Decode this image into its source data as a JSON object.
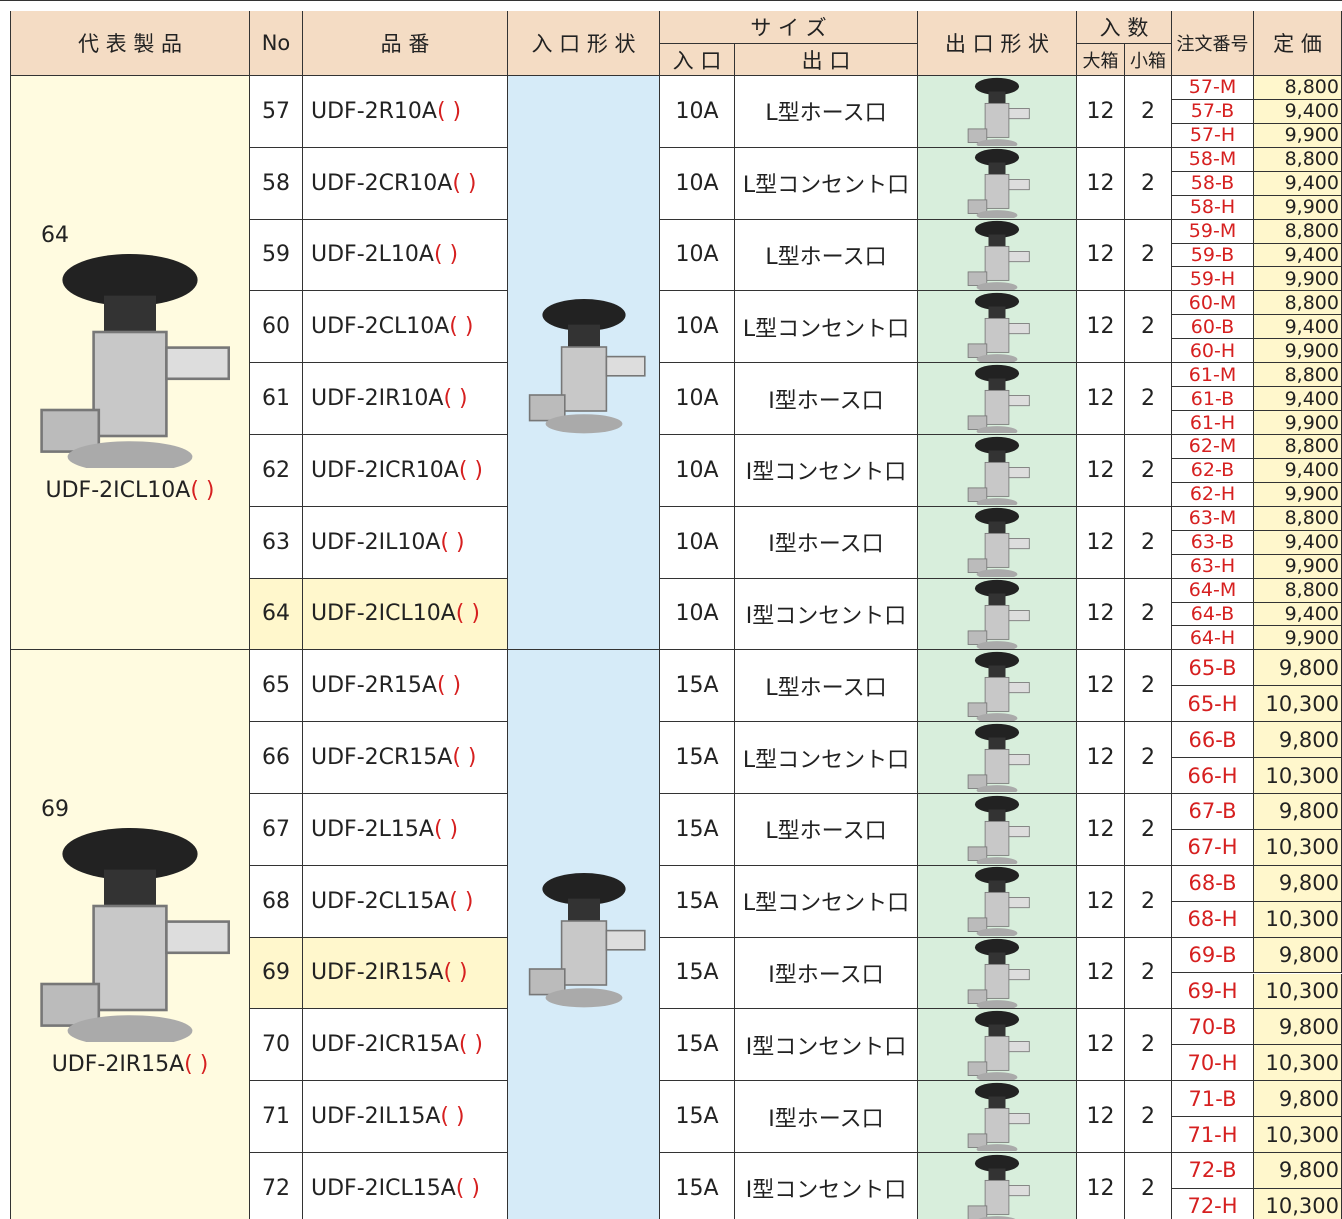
{
  "header": {
    "rep": "代 表 製 品",
    "no": "No",
    "model": "品 番",
    "inlet_shape": "入 口 形 状",
    "size": "サ イ ズ",
    "size_in": "入 口",
    "size_out": "出 口",
    "outlet_shape": "出 口 形 状",
    "qty": "入 数",
    "qty_big": "大箱",
    "qty_small": "小箱",
    "order": "注文番号",
    "price": "定 価"
  },
  "groups": [
    {
      "rep_no": 64,
      "rep_model": "UDF-2ICL10A",
      "rep_paren": "( )",
      "rows": [
        {
          "no": 57,
          "model": "UDF-2R10A",
          "paren": "( )",
          "inlet": "10A",
          "outlet": "L型ホース口",
          "big": 12,
          "small": 2,
          "orders": [
            {
              "code": "57-M",
              "price": "8,800"
            },
            {
              "code": "57-B",
              "price": "9,400"
            },
            {
              "code": "57-H",
              "price": "9,900"
            }
          ]
        },
        {
          "no": 58,
          "model": "UDF-2CR10A",
          "paren": "( )",
          "inlet": "10A",
          "outlet": "L型コンセント口",
          "big": 12,
          "small": 2,
          "orders": [
            {
              "code": "58-M",
              "price": "8,800"
            },
            {
              "code": "58-B",
              "price": "9,400"
            },
            {
              "code": "58-H",
              "price": "9,900"
            }
          ]
        },
        {
          "no": 59,
          "model": "UDF-2L10A",
          "paren": "( )",
          "inlet": "10A",
          "outlet": "L型ホース口",
          "big": 12,
          "small": 2,
          "orders": [
            {
              "code": "59-M",
              "price": "8,800"
            },
            {
              "code": "59-B",
              "price": "9,400"
            },
            {
              "code": "59-H",
              "price": "9,900"
            }
          ]
        },
        {
          "no": 60,
          "model": "UDF-2CL10A",
          "paren": "( )",
          "inlet": "10A",
          "outlet": "L型コンセント口",
          "big": 12,
          "small": 2,
          "orders": [
            {
              "code": "60-M",
              "price": "8,800"
            },
            {
              "code": "60-B",
              "price": "9,400"
            },
            {
              "code": "60-H",
              "price": "9,900"
            }
          ]
        },
        {
          "no": 61,
          "model": "UDF-2IR10A",
          "paren": "( )",
          "inlet": "10A",
          "outlet": "I型ホース口",
          "big": 12,
          "small": 2,
          "orders": [
            {
              "code": "61-M",
              "price": "8,800"
            },
            {
              "code": "61-B",
              "price": "9,400"
            },
            {
              "code": "61-H",
              "price": "9,900"
            }
          ]
        },
        {
          "no": 62,
          "model": "UDF-2ICR10A",
          "paren": "( )",
          "inlet": "10A",
          "outlet": "I型コンセント口",
          "big": 12,
          "small": 2,
          "orders": [
            {
              "code": "62-M",
              "price": "8,800"
            },
            {
              "code": "62-B",
              "price": "9,400"
            },
            {
              "code": "62-H",
              "price": "9,900"
            }
          ]
        },
        {
          "no": 63,
          "model": "UDF-2IL10A",
          "paren": "( )",
          "inlet": "10A",
          "outlet": "I型ホース口",
          "big": 12,
          "small": 2,
          "orders": [
            {
              "code": "63-M",
              "price": "8,800"
            },
            {
              "code": "63-B",
              "price": "9,400"
            },
            {
              "code": "63-H",
              "price": "9,900"
            }
          ]
        },
        {
          "no": 64,
          "model": "UDF-2ICL10A",
          "paren": "( )",
          "inlet": "10A",
          "outlet": "I型コンセント口",
          "big": 12,
          "small": 2,
          "orders": [
            {
              "code": "64-M",
              "price": "8,800"
            },
            {
              "code": "64-B",
              "price": "9,400"
            },
            {
              "code": "64-H",
              "price": "9,900"
            }
          ]
        }
      ]
    },
    {
      "rep_no": 69,
      "rep_model": "UDF-2IR15A",
      "rep_paren": "( )",
      "rows": [
        {
          "no": 65,
          "model": "UDF-2R15A",
          "paren": "( )",
          "inlet": "15A",
          "outlet": "L型ホース口",
          "big": 12,
          "small": 2,
          "orders": [
            {
              "code": "65-B",
              "price": "9,800"
            },
            {
              "code": "65-H",
              "price": "10,300"
            }
          ]
        },
        {
          "no": 66,
          "model": "UDF-2CR15A",
          "paren": "( )",
          "inlet": "15A",
          "outlet": "L型コンセント口",
          "big": 12,
          "small": 2,
          "orders": [
            {
              "code": "66-B",
              "price": "9,800"
            },
            {
              "code": "66-H",
              "price": "10,300"
            }
          ]
        },
        {
          "no": 67,
          "model": "UDF-2L15A",
          "paren": "( )",
          "inlet": "15A",
          "outlet": "L型ホース口",
          "big": 12,
          "small": 2,
          "orders": [
            {
              "code": "67-B",
              "price": "9,800"
            },
            {
              "code": "67-H",
              "price": "10,300"
            }
          ]
        },
        {
          "no": 68,
          "model": "UDF-2CL15A",
          "paren": "( )",
          "inlet": "15A",
          "outlet": "L型コンセント口",
          "big": 12,
          "small": 2,
          "orders": [
            {
              "code": "68-B",
              "price": "9,800"
            },
            {
              "code": "68-H",
              "price": "10,300"
            }
          ]
        },
        {
          "no": 69,
          "model": "UDF-2IR15A",
          "paren": "( )",
          "inlet": "15A",
          "outlet": "I型ホース口",
          "big": 12,
          "small": 2,
          "orders": [
            {
              "code": "69-B",
              "price": "9,800"
            },
            {
              "code": "69-H",
              "price": "10,300"
            }
          ]
        },
        {
          "no": 70,
          "model": "UDF-2ICR15A",
          "paren": "( )",
          "inlet": "15A",
          "outlet": "I型コンセント口",
          "big": 12,
          "small": 2,
          "orders": [
            {
              "code": "70-B",
              "price": "9,800"
            },
            {
              "code": "70-H",
              "price": "10,300"
            }
          ]
        },
        {
          "no": 71,
          "model": "UDF-2IL15A",
          "paren": "( )",
          "inlet": "15A",
          "outlet": "I型ホース口",
          "big": 12,
          "small": 2,
          "orders": [
            {
              "code": "71-B",
              "price": "9,800"
            },
            {
              "code": "71-H",
              "price": "10,300"
            }
          ]
        },
        {
          "no": 72,
          "model": "UDF-2ICL15A",
          "paren": "( )",
          "inlet": "15A",
          "outlet": "I型コンセント口",
          "big": 12,
          "small": 2,
          "orders": [
            {
              "code": "72-B",
              "price": "9,800"
            },
            {
              "code": "72-H",
              "price": "10,300"
            }
          ]
        }
      ]
    }
  ]
}
